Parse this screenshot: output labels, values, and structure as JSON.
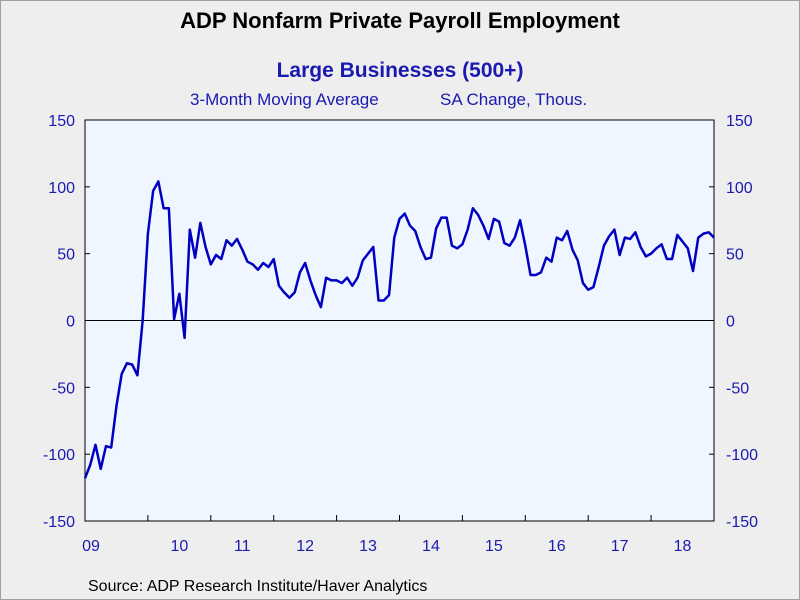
{
  "title": "ADP Nonfarm Private Payroll Employment",
  "subtitle": "Large Businesses (500+)",
  "measure_left": "3-Month Moving Average",
  "measure_right": "SA Change, Thous.",
  "source": "Source:  ADP Research Institute/Haver Analytics",
  "colors": {
    "line": "#0000c0",
    "axis_text": "#1a1ab0",
    "plot_bg": "#f0f6ff",
    "page_bg": "#eeeeee"
  },
  "chart_data": {
    "type": "line",
    "title": "ADP Nonfarm Private Payroll Employment",
    "ylim": [
      -150,
      150
    ],
    "xlim": [
      2009.0,
      2019.0
    ],
    "y_ticks": [
      150,
      100,
      50,
      0,
      -50,
      -100,
      -150
    ],
    "x_tick_labels": [
      "09",
      "10",
      "11",
      "12",
      "13",
      "14",
      "15",
      "16",
      "17",
      "18"
    ],
    "x_tick_positions": [
      2009,
      2010,
      2011,
      2012,
      2013,
      2014,
      2015,
      2016,
      2017,
      2018
    ],
    "grid": false,
    "zero_line": true,
    "series": [
      {
        "values": [
          -118,
          -108,
          -93,
          -111,
          -94,
          -95,
          -64,
          -40,
          -32,
          -33,
          -41,
          0,
          65,
          97,
          104,
          84,
          84,
          1,
          20,
          -13,
          68,
          47,
          73,
          55,
          42,
          49,
          46,
          60,
          56,
          61,
          53,
          44,
          42,
          38,
          43,
          40,
          46,
          26,
          21,
          17,
          21,
          36,
          43,
          30,
          19,
          10,
          32,
          30,
          30,
          28,
          32,
          26,
          32,
          45,
          50,
          55,
          15,
          15,
          19,
          62,
          76,
          80,
          71,
          67,
          55,
          46,
          47,
          69,
          77,
          77,
          56,
          54,
          57,
          68,
          84,
          79,
          71,
          61,
          76,
          74,
          58,
          56,
          62,
          75,
          56,
          34,
          34,
          36,
          47,
          44,
          62,
          60,
          67,
          53,
          45,
          28,
          23,
          25,
          40,
          56,
          63,
          68,
          49,
          62,
          61,
          66,
          55,
          48,
          50,
          54,
          57,
          46,
          46,
          64,
          59,
          54,
          37,
          62,
          65,
          66,
          62
        ],
        "start": 2009.0,
        "step_months": 1
      }
    ]
  }
}
